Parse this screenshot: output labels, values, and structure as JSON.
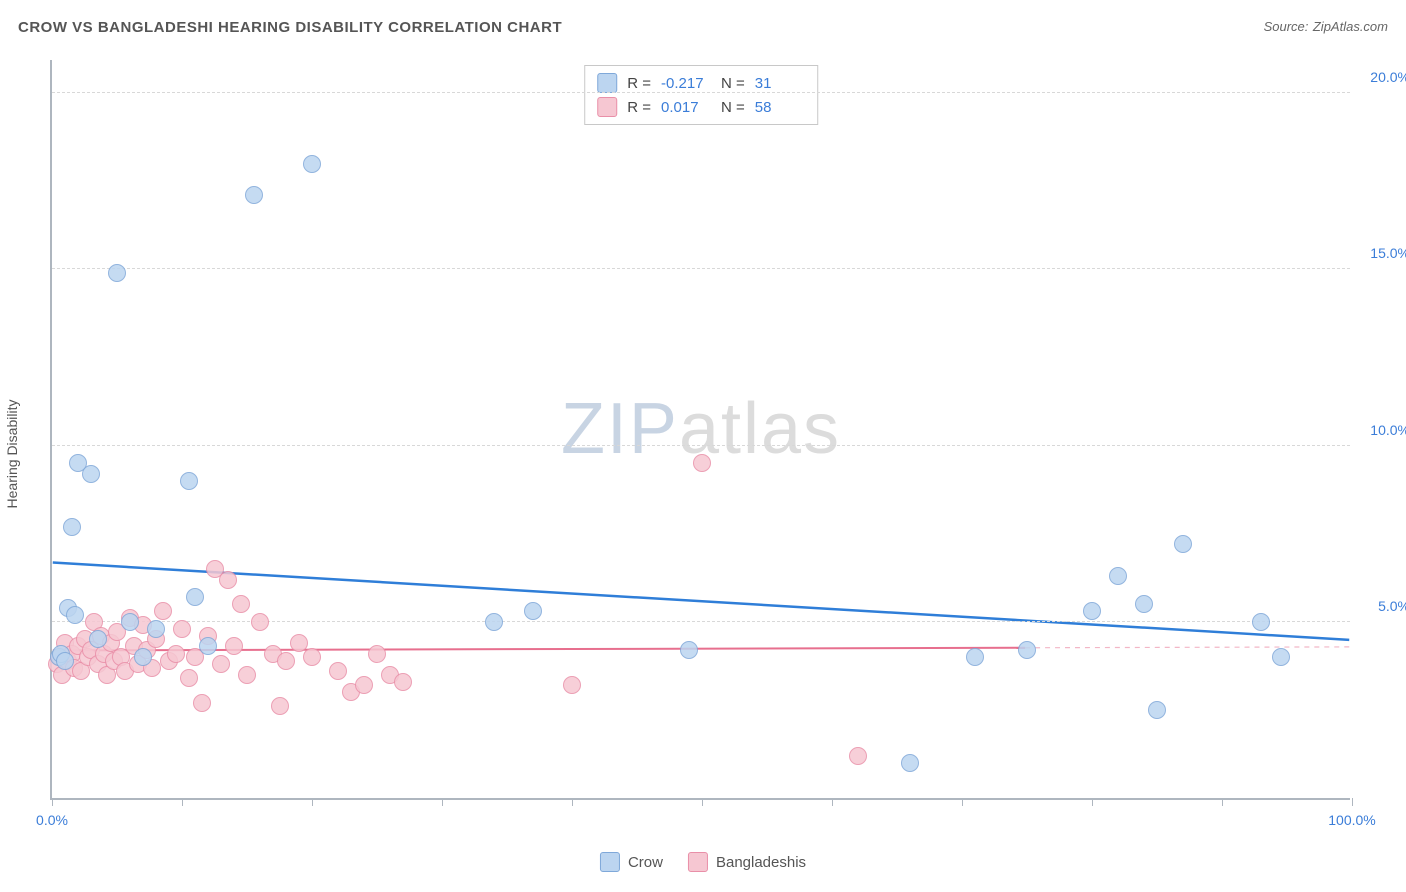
{
  "title": "CROW VS BANGLADESHI HEARING DISABILITY CORRELATION CHART",
  "source_label": "Source:",
  "source_name": "ZipAtlas.com",
  "y_axis_label": "Hearing Disability",
  "watermark": {
    "part1": "ZIP",
    "part2": "atlas"
  },
  "chart": {
    "type": "scatter",
    "xlim": [
      0,
      100
    ],
    "ylim": [
      0,
      21
    ],
    "x_ticks": [
      0,
      10,
      20,
      30,
      40,
      50,
      60,
      70,
      80,
      90,
      100
    ],
    "x_tick_labels_shown": [
      {
        "pos": 0,
        "label": "0.0%"
      },
      {
        "pos": 100,
        "label": "100.0%"
      }
    ],
    "y_ticks": [
      {
        "pos": 5,
        "label": "5.0%"
      },
      {
        "pos": 10,
        "label": "10.0%"
      },
      {
        "pos": 15,
        "label": "15.0%"
      },
      {
        "pos": 20,
        "label": "20.0%"
      }
    ],
    "grid_color": "#d8d8d8",
    "axis_color": "#aeb6bf",
    "background_color": "#ffffff",
    "x_label_color": "#3b7dd8",
    "y_label_color": "#3b7dd8",
    "marker_radius": 9,
    "marker_border_width": 1,
    "series": [
      {
        "name": "Crow",
        "fill_color": "#bcd5f0",
        "border_color": "#7fa8d9",
        "trend_color": "#2f7ed8",
        "trend_width": 2.5,
        "trend_start_y": 6.7,
        "trend_end_y": 4.5,
        "trend_dash_from_x": 100,
        "stats": {
          "R": "-0.217",
          "N": "31"
        },
        "points": [
          {
            "x": 0.5,
            "y": 4.0
          },
          {
            "x": 0.7,
            "y": 4.1
          },
          {
            "x": 1.0,
            "y": 3.9
          },
          {
            "x": 1.2,
            "y": 5.4
          },
          {
            "x": 1.5,
            "y": 7.7
          },
          {
            "x": 1.8,
            "y": 5.2
          },
          {
            "x": 2.0,
            "y": 9.5
          },
          {
            "x": 3.0,
            "y": 9.2
          },
          {
            "x": 3.5,
            "y": 4.5
          },
          {
            "x": 5.0,
            "y": 14.9
          },
          {
            "x": 6.0,
            "y": 5.0
          },
          {
            "x": 7.0,
            "y": 4.0
          },
          {
            "x": 8.0,
            "y": 4.8
          },
          {
            "x": 10.5,
            "y": 9.0
          },
          {
            "x": 11.0,
            "y": 5.7
          },
          {
            "x": 12.0,
            "y": 4.3
          },
          {
            "x": 15.5,
            "y": 17.1
          },
          {
            "x": 20.0,
            "y": 18.0
          },
          {
            "x": 34.0,
            "y": 5.0
          },
          {
            "x": 37.0,
            "y": 5.3
          },
          {
            "x": 49.0,
            "y": 4.2
          },
          {
            "x": 66.0,
            "y": 1.0
          },
          {
            "x": 71.0,
            "y": 4.0
          },
          {
            "x": 75.0,
            "y": 4.2
          },
          {
            "x": 80.0,
            "y": 5.3
          },
          {
            "x": 82.0,
            "y": 6.3
          },
          {
            "x": 84.0,
            "y": 5.5
          },
          {
            "x": 85.0,
            "y": 2.5
          },
          {
            "x": 87.0,
            "y": 7.2
          },
          {
            "x": 93.0,
            "y": 5.0
          },
          {
            "x": 94.5,
            "y": 4.0
          }
        ]
      },
      {
        "name": "Bangladeshis",
        "fill_color": "#f6c7d2",
        "border_color": "#e98fa8",
        "trend_color": "#e76f8e",
        "trend_width": 2,
        "trend_start_y": 4.2,
        "trend_end_y": 4.3,
        "trend_dash_from_x": 75,
        "stats": {
          "R": "0.017",
          "N": "58"
        },
        "points": [
          {
            "x": 0.4,
            "y": 3.8
          },
          {
            "x": 0.6,
            "y": 4.0
          },
          {
            "x": 0.8,
            "y": 3.5
          },
          {
            "x": 1.0,
            "y": 4.4
          },
          {
            "x": 1.2,
            "y": 3.9
          },
          {
            "x": 1.5,
            "y": 4.1
          },
          {
            "x": 1.7,
            "y": 3.7
          },
          {
            "x": 2.0,
            "y": 4.3
          },
          {
            "x": 2.2,
            "y": 3.6
          },
          {
            "x": 2.5,
            "y": 4.5
          },
          {
            "x": 2.8,
            "y": 4.0
          },
          {
            "x": 3.0,
            "y": 4.2
          },
          {
            "x": 3.2,
            "y": 5.0
          },
          {
            "x": 3.5,
            "y": 3.8
          },
          {
            "x": 3.8,
            "y": 4.6
          },
          {
            "x": 4.0,
            "y": 4.1
          },
          {
            "x": 4.2,
            "y": 3.5
          },
          {
            "x": 4.5,
            "y": 4.4
          },
          {
            "x": 4.8,
            "y": 3.9
          },
          {
            "x": 5.0,
            "y": 4.7
          },
          {
            "x": 5.3,
            "y": 4.0
          },
          {
            "x": 5.6,
            "y": 3.6
          },
          {
            "x": 6.0,
            "y": 5.1
          },
          {
            "x": 6.3,
            "y": 4.3
          },
          {
            "x": 6.6,
            "y": 3.8
          },
          {
            "x": 7.0,
            "y": 4.9
          },
          {
            "x": 7.3,
            "y": 4.2
          },
          {
            "x": 7.7,
            "y": 3.7
          },
          {
            "x": 8.0,
            "y": 4.5
          },
          {
            "x": 8.5,
            "y": 5.3
          },
          {
            "x": 9.0,
            "y": 3.9
          },
          {
            "x": 9.5,
            "y": 4.1
          },
          {
            "x": 10.0,
            "y": 4.8
          },
          {
            "x": 10.5,
            "y": 3.4
          },
          {
            "x": 11.0,
            "y": 4.0
          },
          {
            "x": 11.5,
            "y": 2.7
          },
          {
            "x": 12.0,
            "y": 4.6
          },
          {
            "x": 12.5,
            "y": 6.5
          },
          {
            "x": 13.0,
            "y": 3.8
          },
          {
            "x": 13.5,
            "y": 6.2
          },
          {
            "x": 14.0,
            "y": 4.3
          },
          {
            "x": 14.5,
            "y": 5.5
          },
          {
            "x": 15.0,
            "y": 3.5
          },
          {
            "x": 16.0,
            "y": 5.0
          },
          {
            "x": 17.0,
            "y": 4.1
          },
          {
            "x": 17.5,
            "y": 2.6
          },
          {
            "x": 18.0,
            "y": 3.9
          },
          {
            "x": 19.0,
            "y": 4.4
          },
          {
            "x": 20.0,
            "y": 4.0
          },
          {
            "x": 22.0,
            "y": 3.6
          },
          {
            "x": 23.0,
            "y": 3.0
          },
          {
            "x": 24.0,
            "y": 3.2
          },
          {
            "x": 25.0,
            "y": 4.1
          },
          {
            "x": 26.0,
            "y": 3.5
          },
          {
            "x": 27.0,
            "y": 3.3
          },
          {
            "x": 40.0,
            "y": 3.2
          },
          {
            "x": 50.0,
            "y": 9.5
          },
          {
            "x": 62.0,
            "y": 1.2
          }
        ]
      }
    ]
  }
}
